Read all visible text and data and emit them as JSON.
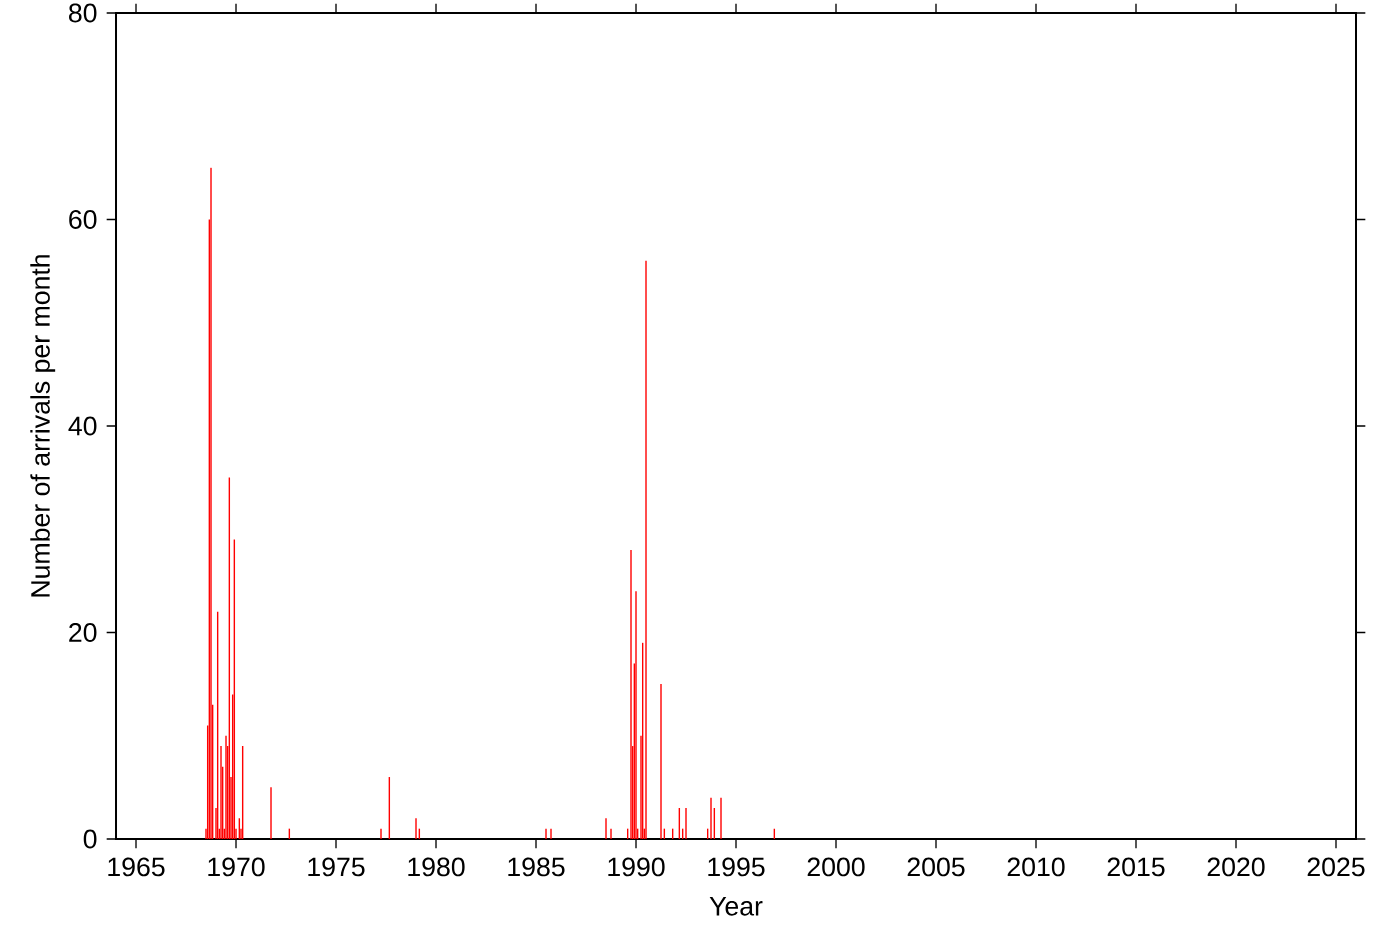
{
  "chart_data": {
    "type": "bar",
    "xlabel": "Year",
    "ylabel": "Number of arrivals per month",
    "color": "#ff0000",
    "x": [
      "1968-07",
      "1968-08",
      "1968-09",
      "1968-10",
      "1968-11",
      "1969-01",
      "1969-02",
      "1969-03",
      "1969-04",
      "1969-05",
      "1969-06",
      "1969-07",
      "1969-08",
      "1969-09",
      "1969-10",
      "1969-11",
      "1969-12",
      "1970-01",
      "1970-03",
      "1970-04",
      "1970-05",
      "1971-10",
      "1972-09",
      "1977-04",
      "1977-09",
      "1979-01",
      "1979-03",
      "1985-07",
      "1985-10",
      "1988-07",
      "1988-10",
      "1989-08",
      "1989-10",
      "1989-11",
      "1989-12",
      "1990-01",
      "1990-02",
      "1990-04",
      "1990-05",
      "1990-06",
      "1990-07",
      "1991-04",
      "1991-06",
      "1991-11",
      "1992-03",
      "1992-05",
      "1992-07",
      "1993-08",
      "1993-10",
      "1993-12",
      "1994-04",
      "1996-12"
    ],
    "values": [
      1,
      11,
      60,
      65,
      13,
      3,
      22,
      1,
      9,
      7,
      1,
      10,
      9,
      35,
      6,
      14,
      29,
      1,
      2,
      1,
      9,
      5,
      1,
      1,
      6,
      2,
      1,
      1,
      1,
      2,
      1,
      1,
      28,
      9,
      17,
      24,
      1,
      10,
      19,
      1,
      56,
      15,
      1,
      1,
      3,
      1,
      3,
      1,
      4,
      3,
      4,
      1
    ],
    "xlim": [
      "1964",
      "2026"
    ],
    "ylim": [
      0,
      80
    ],
    "xticks": [
      "1965",
      "1970",
      "1975",
      "1980",
      "1985",
      "1990",
      "1995",
      "2000",
      "2005",
      "2010",
      "2015",
      "2020",
      "2025"
    ],
    "yticks": [
      0,
      20,
      40,
      60,
      80
    ],
    "grid": false
  }
}
